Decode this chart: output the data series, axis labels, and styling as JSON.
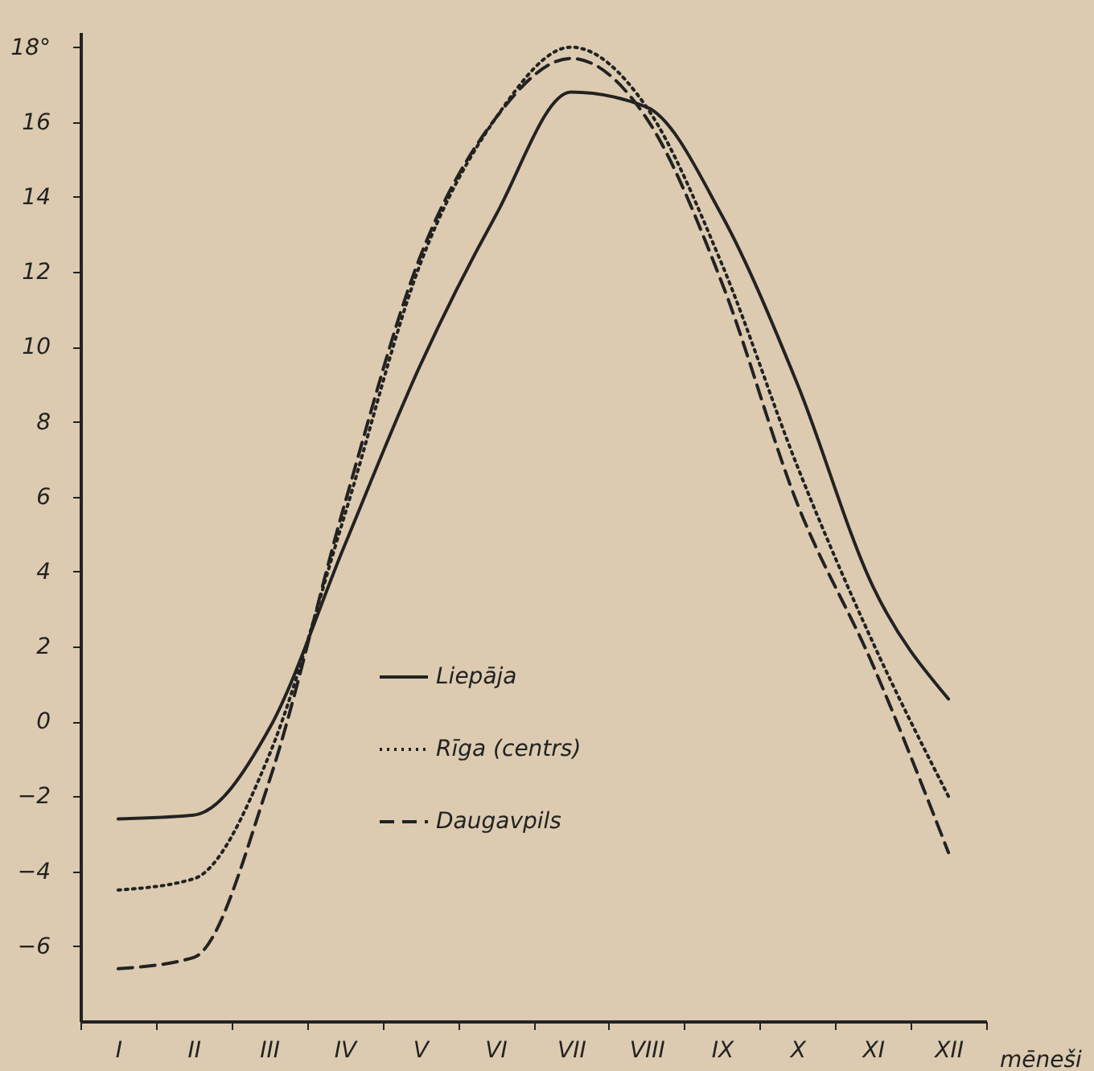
{
  "chart_data": {
    "type": "line",
    "xlabel": "mēneši",
    "categories": [
      "I",
      "II",
      "III",
      "IV",
      "V",
      "VI",
      "VII",
      "VIII",
      "IX",
      "X",
      "XI",
      "XII"
    ],
    "ylim": [
      -8,
      18.4
    ],
    "yticks": [
      -6,
      -4,
      -2,
      0,
      2,
      4,
      6,
      8,
      10,
      12,
      14,
      16,
      {
        "value": 18,
        "label": "18°"
      }
    ],
    "legend": "bottom",
    "grid": false,
    "marker": "none",
    "series": [
      {
        "name": "Liepāja",
        "color": "#222222",
        "line_style": "solid",
        "values": [
          -2.6,
          -2.5,
          -0.2,
          4.7,
          9.5,
          13.5,
          16.8,
          16.4,
          13.5,
          9.0,
          3.6,
          0.6
        ]
      },
      {
        "name": "Rīga (centrs)",
        "color": "#222222",
        "line_style": "dotted",
        "values": [
          -4.5,
          -4.2,
          -0.9,
          5.5,
          12.2,
          16.1,
          18.0,
          16.4,
          12.2,
          6.8,
          2.1,
          -2.0
        ]
      },
      {
        "name": "Daugavpils",
        "color": "#222222",
        "line_style": "dashed",
        "values": [
          -6.6,
          -6.3,
          -1.6,
          5.8,
          12.4,
          16.1,
          17.7,
          16.1,
          11.7,
          5.8,
          1.5,
          -3.5
        ]
      }
    ]
  }
}
